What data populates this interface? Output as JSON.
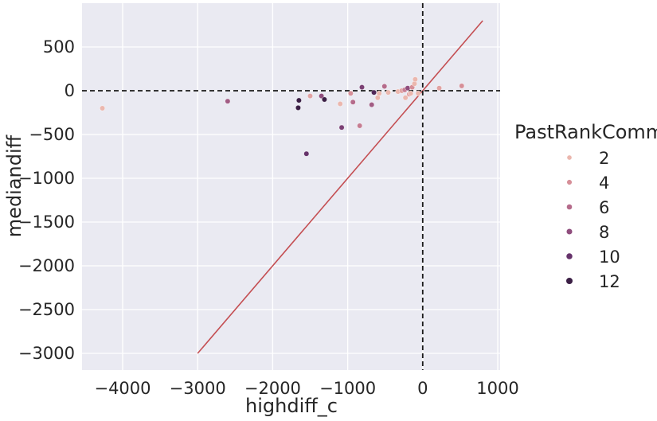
{
  "chart_data": {
    "type": "scatter",
    "title": "",
    "xlabel": "highdiff_c",
    "ylabel": "mediandiff",
    "xlim": [
      -4550,
      1050
    ],
    "ylim": [
      -3200,
      960
    ],
    "x_ticks": [
      -4000,
      -3000,
      -2000,
      -1000,
      0,
      1000
    ],
    "y_ticks": [
      500,
      0,
      -500,
      -1000,
      -1500,
      -2000,
      -2500,
      -3000
    ],
    "x_tick_labels": [
      "−4000",
      "−3000",
      "−2000",
      "−1000",
      "0",
      "1000"
    ],
    "y_tick_labels": [
      "500",
      "0",
      "−500",
      "−1000",
      "−1500",
      "−2000",
      "−2500",
      "−3000"
    ],
    "grid": true,
    "background": "#eaeaf2",
    "reference_lines": {
      "horizontal_y": 0,
      "vertical_x": 0,
      "style": "dashed",
      "color": "#1a1a1a",
      "diagonal": {
        "from": [
          -3000,
          -3000
        ],
        "to": [
          800,
          800
        ],
        "color": "#c44e52"
      }
    },
    "legend": {
      "title": "PastRankComm",
      "placement": "right",
      "entries": [
        {
          "label": "2",
          "value": 2,
          "color": "#ebb7ae"
        },
        {
          "label": "4",
          "value": 4,
          "color": "#d68f98"
        },
        {
          "label": "6",
          "value": 6,
          "color": "#b56b8b"
        },
        {
          "label": "8",
          "value": 8,
          "color": "#8f4d7d"
        },
        {
          "label": "10",
          "value": 10,
          "color": "#66336b"
        },
        {
          "label": "12",
          "value": 12,
          "color": "#3b1f45"
        }
      ]
    },
    "points": [
      {
        "x": -4270,
        "y": -200,
        "rank": 1
      },
      {
        "x": -2600,
        "y": -120,
        "rank": 7
      },
      {
        "x": -1500,
        "y": -60,
        "rank": 3
      },
      {
        "x": -1350,
        "y": -60,
        "rank": 8
      },
      {
        "x": -1310,
        "y": -100,
        "rank": 12
      },
      {
        "x": -1650,
        "y": -110,
        "rank": 13
      },
      {
        "x": -1660,
        "y": -195,
        "rank": 12
      },
      {
        "x": -1550,
        "y": -720,
        "rank": 10
      },
      {
        "x": -1080,
        "y": -420,
        "rank": 9
      },
      {
        "x": -1100,
        "y": -150,
        "rank": 2
      },
      {
        "x": -960,
        "y": -30,
        "rank": 4
      },
      {
        "x": -930,
        "y": -130,
        "rank": 6
      },
      {
        "x": -840,
        "y": -400,
        "rank": 5
      },
      {
        "x": -810,
        "y": 40,
        "rank": 9
      },
      {
        "x": -680,
        "y": -160,
        "rank": 7
      },
      {
        "x": -650,
        "y": -20,
        "rank": 11
      },
      {
        "x": -600,
        "y": -80,
        "rank": 2
      },
      {
        "x": -580,
        "y": -30,
        "rank": 1
      },
      {
        "x": -510,
        "y": 50,
        "rank": 6
      },
      {
        "x": -460,
        "y": -20,
        "rank": 1
      },
      {
        "x": -330,
        "y": -10,
        "rank": 2
      },
      {
        "x": -280,
        "y": 0,
        "rank": 3
      },
      {
        "x": -240,
        "y": 10,
        "rank": 5
      },
      {
        "x": -230,
        "y": -80,
        "rank": 2
      },
      {
        "x": -200,
        "y": 30,
        "rank": 8
      },
      {
        "x": -180,
        "y": -40,
        "rank": 3
      },
      {
        "x": -160,
        "y": -30,
        "rank": 1
      },
      {
        "x": -140,
        "y": 40,
        "rank": 4
      },
      {
        "x": -110,
        "y": 80,
        "rank": 2
      },
      {
        "x": -100,
        "y": 130,
        "rank": 1
      },
      {
        "x": -60,
        "y": -30,
        "rank": 2
      },
      {
        "x": 220,
        "y": 30,
        "rank": 3
      },
      {
        "x": 520,
        "y": 55,
        "rank": 4
      }
    ]
  }
}
